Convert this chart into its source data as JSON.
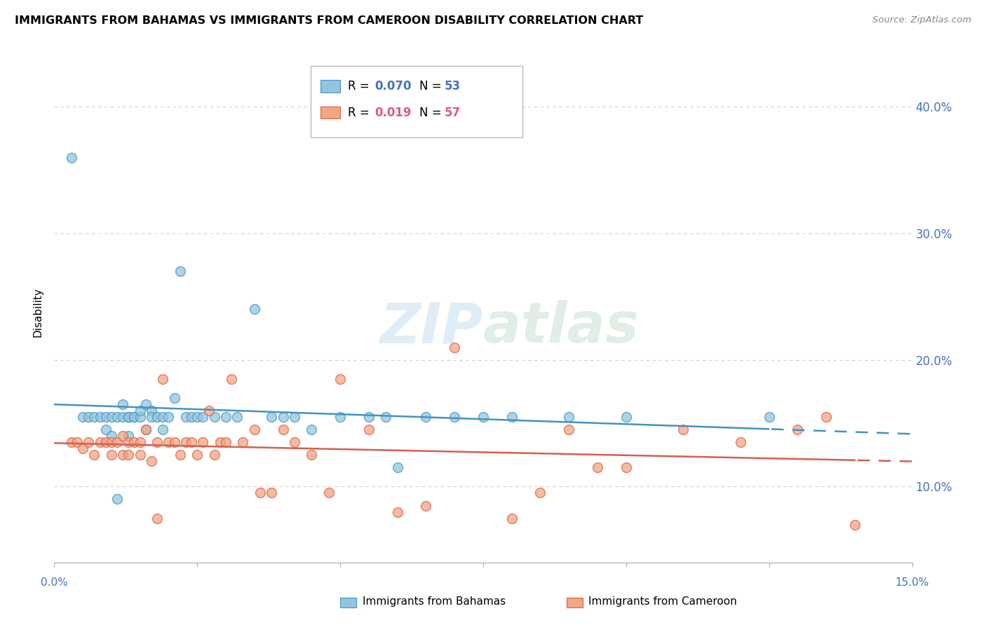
{
  "title": "IMMIGRANTS FROM BAHAMAS VS IMMIGRANTS FROM CAMEROON DISABILITY CORRELATION CHART",
  "source": "Source: ZipAtlas.com",
  "ylabel": "Disability",
  "y_ticks": [
    0.1,
    0.2,
    0.3,
    0.4
  ],
  "y_tick_labels": [
    "10.0%",
    "20.0%",
    "30.0%",
    "40.0%"
  ],
  "x_lim": [
    0.0,
    0.15
  ],
  "y_lim": [
    0.04,
    0.435
  ],
  "color_blue_fill": "#92c5de",
  "color_blue_edge": "#4393c3",
  "color_pink_fill": "#f4a582",
  "color_pink_edge": "#d6604d",
  "color_blue_line": "#4393c3",
  "color_pink_line": "#d6604d",
  "color_blue_text": "#4472c4",
  "color_pink_text": "#e05c7a",
  "color_axis_labels": "#4472c4",
  "color_grid": "#d0d0d0",
  "bahamas_x": [
    0.003,
    0.005,
    0.006,
    0.007,
    0.008,
    0.009,
    0.009,
    0.01,
    0.01,
    0.011,
    0.011,
    0.012,
    0.012,
    0.013,
    0.013,
    0.013,
    0.014,
    0.014,
    0.015,
    0.015,
    0.016,
    0.016,
    0.017,
    0.017,
    0.018,
    0.019,
    0.019,
    0.02,
    0.021,
    0.022,
    0.023,
    0.024,
    0.025,
    0.026,
    0.028,
    0.03,
    0.032,
    0.035,
    0.038,
    0.04,
    0.042,
    0.045,
    0.05,
    0.055,
    0.058,
    0.06,
    0.065,
    0.07,
    0.075,
    0.08,
    0.09,
    0.1,
    0.125
  ],
  "bahamas_y": [
    0.36,
    0.155,
    0.155,
    0.155,
    0.155,
    0.145,
    0.155,
    0.14,
    0.155,
    0.09,
    0.155,
    0.155,
    0.165,
    0.14,
    0.155,
    0.155,
    0.155,
    0.155,
    0.155,
    0.16,
    0.165,
    0.145,
    0.16,
    0.155,
    0.155,
    0.145,
    0.155,
    0.155,
    0.17,
    0.27,
    0.155,
    0.155,
    0.155,
    0.155,
    0.155,
    0.155,
    0.155,
    0.24,
    0.155,
    0.155,
    0.155,
    0.145,
    0.155,
    0.155,
    0.155,
    0.115,
    0.155,
    0.155,
    0.155,
    0.155,
    0.155,
    0.155,
    0.155
  ],
  "cameroon_x": [
    0.003,
    0.004,
    0.005,
    0.006,
    0.007,
    0.008,
    0.009,
    0.01,
    0.01,
    0.011,
    0.012,
    0.012,
    0.013,
    0.013,
    0.014,
    0.015,
    0.015,
    0.016,
    0.017,
    0.018,
    0.018,
    0.019,
    0.02,
    0.021,
    0.022,
    0.023,
    0.024,
    0.025,
    0.026,
    0.027,
    0.028,
    0.029,
    0.03,
    0.031,
    0.033,
    0.035,
    0.036,
    0.038,
    0.04,
    0.042,
    0.045,
    0.048,
    0.05,
    0.055,
    0.06,
    0.065,
    0.07,
    0.08,
    0.085,
    0.09,
    0.095,
    0.1,
    0.11,
    0.12,
    0.13,
    0.135,
    0.14
  ],
  "cameroon_y": [
    0.135,
    0.135,
    0.13,
    0.135,
    0.125,
    0.135,
    0.135,
    0.125,
    0.135,
    0.135,
    0.14,
    0.125,
    0.135,
    0.125,
    0.135,
    0.125,
    0.135,
    0.145,
    0.12,
    0.075,
    0.135,
    0.185,
    0.135,
    0.135,
    0.125,
    0.135,
    0.135,
    0.125,
    0.135,
    0.16,
    0.125,
    0.135,
    0.135,
    0.185,
    0.135,
    0.145,
    0.095,
    0.095,
    0.145,
    0.135,
    0.125,
    0.095,
    0.185,
    0.145,
    0.08,
    0.085,
    0.21,
    0.075,
    0.095,
    0.145,
    0.115,
    0.115,
    0.145,
    0.135,
    0.145,
    0.155,
    0.07
  ],
  "background_color": "#ffffff"
}
